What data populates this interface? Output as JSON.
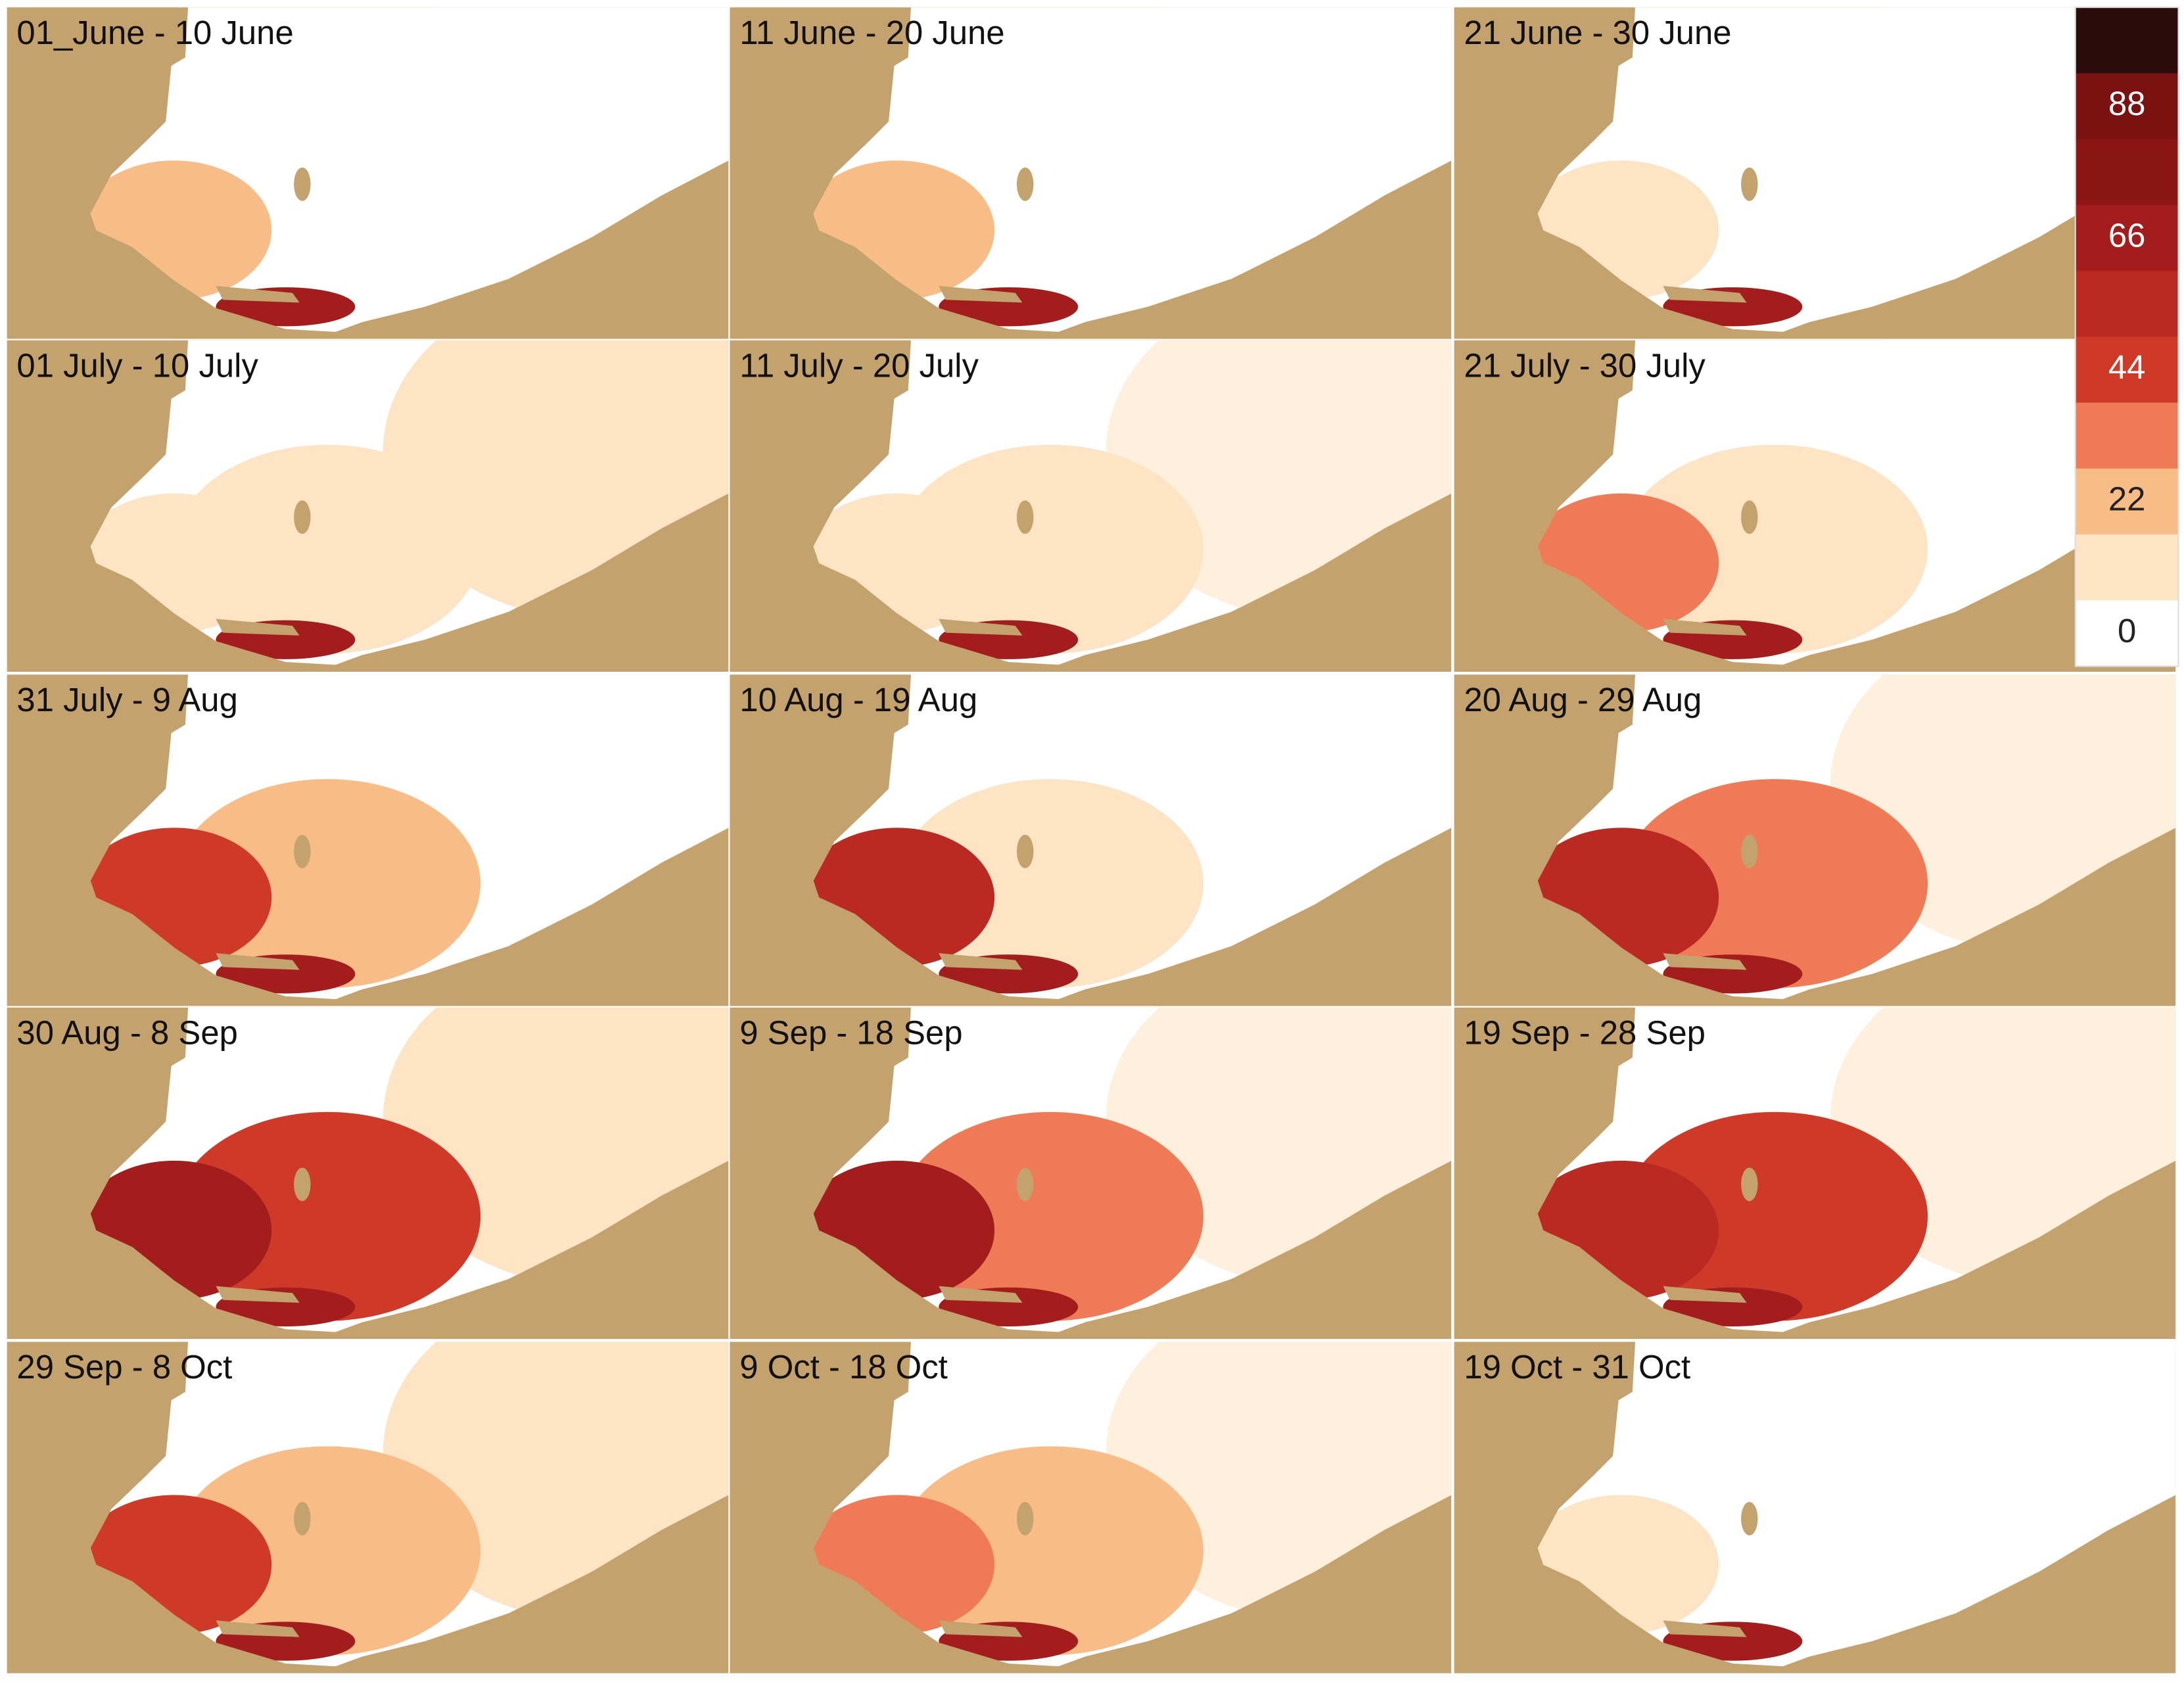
{
  "panels": [
    {
      "label": "01_June - 10 June"
    },
    {
      "label": "11 June - 20 June"
    },
    {
      "label": "21 June - 30 June"
    },
    {
      "label": "01 July - 10 July"
    },
    {
      "label": "11 July - 20 July"
    },
    {
      "label": "21 July - 30 July"
    },
    {
      "label": "31 July - 9 Aug"
    },
    {
      "label": "10 Aug - 19 Aug"
    },
    {
      "label": "20 Aug - 29 Aug"
    },
    {
      "label": "30 Aug - 8 Sep"
    },
    {
      "label": "9 Sep - 18 Sep"
    },
    {
      "label": "19 Sep - 28 Sep"
    },
    {
      "label": "29 Sep - 8 Oct"
    },
    {
      "label": "9 Oct - 18 Oct"
    },
    {
      "label": "19 Oct - 31 Oct"
    }
  ],
  "colorbar": {
    "colors": [
      "#2b0d0d",
      "#7a1212",
      "#8c1616",
      "#a31d1d",
      "#bb2a22",
      "#cf3a28",
      "#ef7b56",
      "#f8bc86",
      "#fde4c4",
      "#ffffff"
    ],
    "labels": [
      88,
      66,
      44,
      22,
      0
    ]
  }
}
